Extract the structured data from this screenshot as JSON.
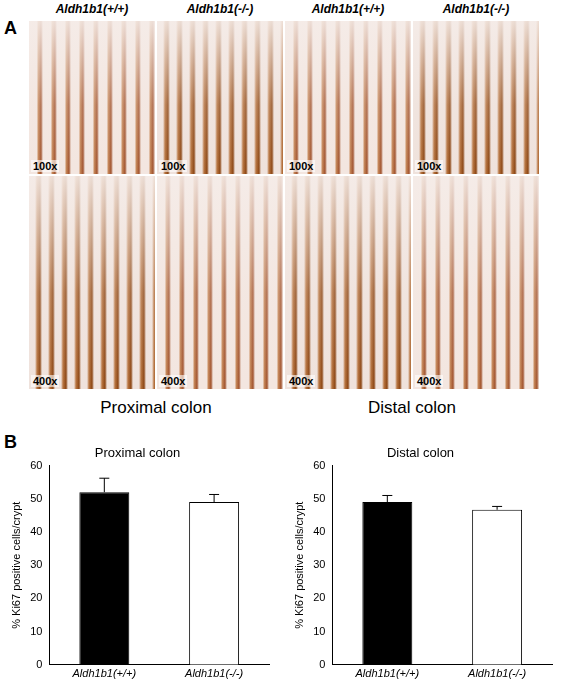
{
  "figure": {
    "panel_labels": [
      "A",
      "B"
    ],
    "columns": [
      "Aldh1b1(+/+)",
      "Aldh1b1(-/-)",
      "Aldh1b1(+/+)",
      "Aldh1b1(-/-)"
    ],
    "rows": [
      {
        "magnification": "100x"
      },
      {
        "magnification": "400x"
      }
    ],
    "regions": [
      "Proximal colon",
      "Distal colon"
    ]
  },
  "chart_data": [
    {
      "type": "bar",
      "title": "Proximal colon",
      "ylabel": "% Ki67 positive cells/crypt",
      "categories": [
        "Aldh1b1(+/+)",
        "Aldh1b1(-/-)"
      ],
      "values": [
        52,
        49
      ],
      "errors": [
        4.2,
        2.3
      ],
      "colors": [
        "#000000",
        "#ffffff"
      ],
      "ylim": [
        0,
        60
      ],
      "yticks": [
        0,
        10,
        20,
        30,
        40,
        50,
        60
      ],
      "grid": false
    },
    {
      "type": "bar",
      "title": "Distal colon",
      "ylabel": "% Ki67 positive cells/crypt",
      "categories": [
        "Aldh1b1(+/+)",
        "Aldh1b1(-/-)"
      ],
      "values": [
        49,
        46.7
      ],
      "errors": [
        2,
        1
      ],
      "colors": [
        "#000000",
        "#ffffff"
      ],
      "ylim": [
        0,
        60
      ],
      "yticks": [
        0,
        10,
        20,
        30,
        40,
        50,
        60
      ],
      "grid": false
    }
  ]
}
